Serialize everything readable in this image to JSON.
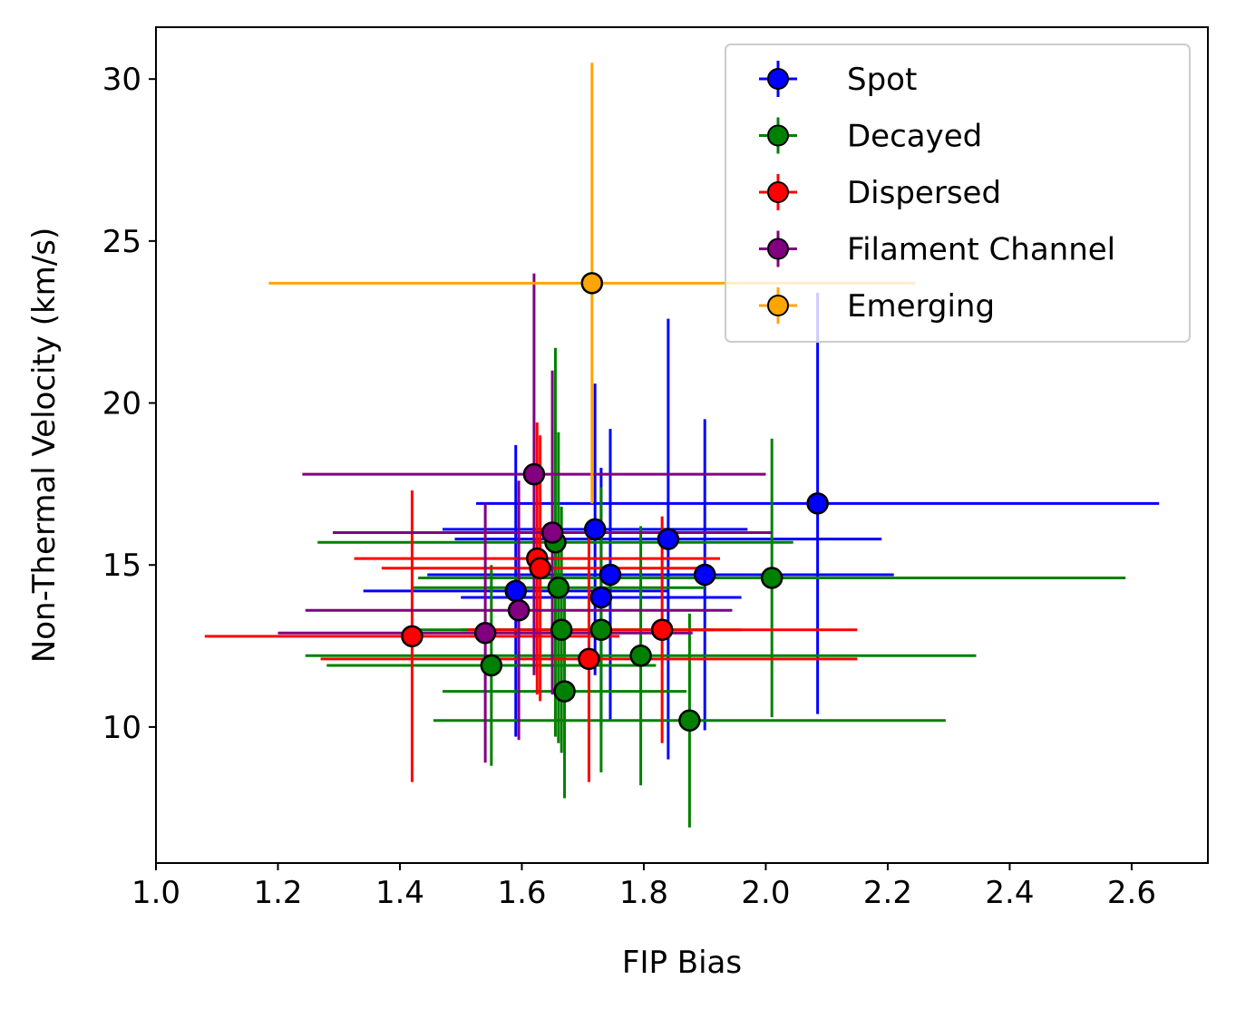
{
  "chart_data": {
    "type": "scatter",
    "title": "",
    "xlabel": "FIP Bias",
    "ylabel": "Non-Thermal Velocity (km/s)",
    "xlim": [
      1.0,
      2.725
    ],
    "ylim": [
      5.8,
      31.6
    ],
    "xticks": [
      1.0,
      1.2,
      1.4,
      1.6,
      1.8,
      2.0,
      2.2,
      2.4,
      2.6
    ],
    "xtick_labels": [
      "1.0",
      "1.2",
      "1.4",
      "1.6",
      "1.8",
      "2.0",
      "2.2",
      "2.4",
      "2.6"
    ],
    "yticks": [
      10,
      15,
      20,
      25,
      30
    ],
    "ytick_labels": [
      "10",
      "15",
      "20",
      "25",
      "30"
    ],
    "legend_position": "upper-right",
    "series": [
      {
        "name": "Spot",
        "color": "#0000ff",
        "points": [
          {
            "x": 1.59,
            "y": 14.2,
            "xerr": 0.25,
            "yerr": 4.5
          },
          {
            "x": 1.72,
            "y": 16.1,
            "xerr": 0.25,
            "yerr": 4.5
          },
          {
            "x": 1.73,
            "y": 14.0,
            "xerr": 0.23,
            "yerr": 4.0
          },
          {
            "x": 1.745,
            "y": 14.7,
            "xerr": 0.3,
            "yerr": 4.5
          },
          {
            "x": 1.84,
            "y": 15.8,
            "xerr": 0.35,
            "yerr": 6.8
          },
          {
            "x": 1.9,
            "y": 14.7,
            "xerr": 0.31,
            "yerr": 4.8
          },
          {
            "x": 2.085,
            "y": 16.9,
            "xerr": 0.56,
            "yerr": 6.5
          }
        ]
      },
      {
        "name": "Decayed",
        "color": "#008000",
        "points": [
          {
            "x": 1.55,
            "y": 11.9,
            "xerr": 0.27,
            "yerr": 3.1
          },
          {
            "x": 1.655,
            "y": 15.7,
            "xerr": 0.39,
            "yerr": 6.0
          },
          {
            "x": 1.66,
            "y": 14.3,
            "xerr": 0.24,
            "yerr": 4.8
          },
          {
            "x": 1.665,
            "y": 13.0,
            "xerr": 0.25,
            "yerr": 3.8
          },
          {
            "x": 1.67,
            "y": 11.1,
            "xerr": 0.2,
            "yerr": 3.3
          },
          {
            "x": 1.73,
            "y": 13.0,
            "xerr": 0.23,
            "yerr": 4.4
          },
          {
            "x": 1.795,
            "y": 12.2,
            "xerr": 0.55,
            "yerr": 4.0
          },
          {
            "x": 1.875,
            "y": 10.2,
            "xerr": 0.42,
            "yerr": 3.3
          },
          {
            "x": 2.01,
            "y": 14.6,
            "xerr": 0.58,
            "yerr": 4.3
          }
        ]
      },
      {
        "name": "Dispersed",
        "color": "#ff0000",
        "points": [
          {
            "x": 1.42,
            "y": 12.8,
            "xerr": 0.34,
            "yerr": 4.5
          },
          {
            "x": 1.625,
            "y": 15.2,
            "xerr": 0.3,
            "yerr": 4.2
          },
          {
            "x": 1.63,
            "y": 14.9,
            "xerr": 0.26,
            "yerr": 4.1
          },
          {
            "x": 1.71,
            "y": 12.1,
            "xerr": 0.44,
            "yerr": 3.8
          },
          {
            "x": 1.83,
            "y": 13.0,
            "xerr": 0.32,
            "yerr": 3.5
          }
        ]
      },
      {
        "name": "Filament Channel",
        "color": "#800080",
        "points": [
          {
            "x": 1.54,
            "y": 12.9,
            "xerr": 0.34,
            "yerr": 4.0
          },
          {
            "x": 1.595,
            "y": 13.6,
            "xerr": 0.35,
            "yerr": 4.0
          },
          {
            "x": 1.62,
            "y": 17.8,
            "xerr": 0.38,
            "yerr": 6.2
          },
          {
            "x": 1.65,
            "y": 16.0,
            "xerr": 0.36,
            "yerr": 5.0
          }
        ]
      },
      {
        "name": "Emerging",
        "color": "#ffa500",
        "points": [
          {
            "x": 1.715,
            "y": 23.7,
            "xerr": 0.53,
            "yerr": 6.8
          }
        ]
      }
    ]
  }
}
